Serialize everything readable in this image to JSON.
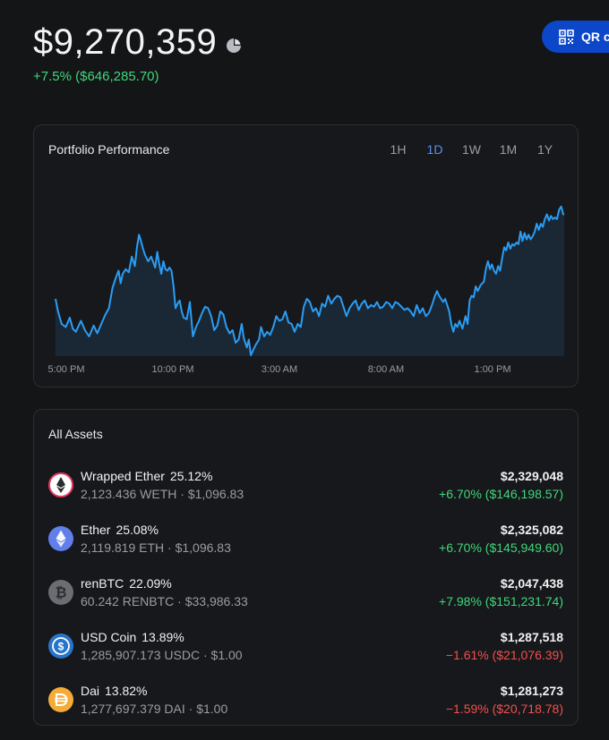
{
  "header": {
    "balance": "$9,270,359",
    "change": "+7.5% ($646,285.70)",
    "qr_button_label": "QR c",
    "pie_icon": "pie-chart-icon",
    "qr_icon": "qr-code-icon"
  },
  "performance": {
    "title": "Portfolio Performance",
    "ranges": [
      "1H",
      "1D",
      "1W",
      "1M",
      "1Y"
    ],
    "active_range": "1D"
  },
  "chart_data": {
    "type": "area",
    "title": "",
    "x_ticks": [
      "5:00 PM",
      "10:00 PM",
      "3:00 AM",
      "8:00 AM",
      "1:00 PM"
    ],
    "y_axis_visible": false,
    "grid": false,
    "line_color": "#2a9df4",
    "fill_color": "#1a2836",
    "series_relative": [
      [
        0,
        0.36
      ],
      [
        0.005,
        0.28
      ],
      [
        0.012,
        0.2
      ],
      [
        0.02,
        0.18
      ],
      [
        0.028,
        0.24
      ],
      [
        0.034,
        0.17
      ],
      [
        0.04,
        0.15
      ],
      [
        0.05,
        0.22
      ],
      [
        0.058,
        0.16
      ],
      [
        0.066,
        0.12
      ],
      [
        0.075,
        0.19
      ],
      [
        0.082,
        0.14
      ],
      [
        0.09,
        0.2
      ],
      [
        0.098,
        0.26
      ],
      [
        0.105,
        0.3
      ],
      [
        0.112,
        0.43
      ],
      [
        0.118,
        0.49
      ],
      [
        0.124,
        0.54
      ],
      [
        0.128,
        0.46
      ],
      [
        0.132,
        0.52
      ],
      [
        0.138,
        0.55
      ],
      [
        0.144,
        0.53
      ],
      [
        0.15,
        0.63
      ],
      [
        0.156,
        0.57
      ],
      [
        0.16,
        0.69
      ],
      [
        0.164,
        0.77
      ],
      [
        0.168,
        0.73
      ],
      [
        0.172,
        0.68
      ],
      [
        0.176,
        0.64
      ],
      [
        0.182,
        0.6
      ],
      [
        0.188,
        0.63
      ],
      [
        0.196,
        0.56
      ],
      [
        0.2,
        0.66
      ],
      [
        0.204,
        0.58
      ],
      [
        0.208,
        0.52
      ],
      [
        0.212,
        0.6
      ],
      [
        0.216,
        0.55
      ],
      [
        0.22,
        0.54
      ],
      [
        0.224,
        0.56
      ],
      [
        0.228,
        0.54
      ],
      [
        0.232,
        0.44
      ],
      [
        0.236,
        0.3
      ],
      [
        0.24,
        0.33
      ],
      [
        0.244,
        0.35
      ],
      [
        0.248,
        0.28
      ],
      [
        0.252,
        0.24
      ],
      [
        0.258,
        0.23
      ],
      [
        0.264,
        0.34
      ],
      [
        0.27,
        0.12
      ],
      [
        0.276,
        0.18
      ],
      [
        0.282,
        0.22
      ],
      [
        0.288,
        0.27
      ],
      [
        0.294,
        0.31
      ],
      [
        0.3,
        0.3
      ],
      [
        0.306,
        0.25
      ],
      [
        0.312,
        0.16
      ],
      [
        0.318,
        0.19
      ],
      [
        0.324,
        0.28
      ],
      [
        0.33,
        0.26
      ],
      [
        0.336,
        0.18
      ],
      [
        0.342,
        0.14
      ],
      [
        0.348,
        0.16
      ],
      [
        0.354,
        0.08
      ],
      [
        0.36,
        0.1
      ],
      [
        0.366,
        0.2
      ],
      [
        0.37,
        0.11
      ],
      [
        0.376,
        0.05
      ],
      [
        0.38,
        0.1
      ],
      [
        0.384,
        0.0
      ],
      [
        0.388,
        0.03
      ],
      [
        0.394,
        0.07
      ],
      [
        0.4,
        0.1
      ],
      [
        0.404,
        0.18
      ],
      [
        0.41,
        0.12
      ],
      [
        0.416,
        0.15
      ],
      [
        0.422,
        0.13
      ],
      [
        0.428,
        0.18
      ],
      [
        0.434,
        0.25
      ],
      [
        0.44,
        0.22
      ],
      [
        0.446,
        0.23
      ],
      [
        0.452,
        0.28
      ],
      [
        0.458,
        0.21
      ],
      [
        0.464,
        0.2
      ],
      [
        0.47,
        0.15
      ],
      [
        0.476,
        0.2
      ],
      [
        0.482,
        0.18
      ],
      [
        0.488,
        0.31
      ],
      [
        0.494,
        0.36
      ],
      [
        0.5,
        0.34
      ],
      [
        0.506,
        0.28
      ],
      [
        0.512,
        0.3
      ],
      [
        0.518,
        0.25
      ],
      [
        0.524,
        0.33
      ],
      [
        0.53,
        0.31
      ],
      [
        0.536,
        0.38
      ],
      [
        0.542,
        0.33
      ],
      [
        0.548,
        0.36
      ],
      [
        0.554,
        0.38
      ],
      [
        0.56,
        0.37
      ],
      [
        0.566,
        0.31
      ],
      [
        0.572,
        0.25
      ],
      [
        0.578,
        0.3
      ],
      [
        0.584,
        0.33
      ],
      [
        0.59,
        0.35
      ],
      [
        0.596,
        0.29
      ],
      [
        0.602,
        0.33
      ],
      [
        0.608,
        0.35
      ],
      [
        0.614,
        0.3
      ],
      [
        0.62,
        0.32
      ],
      [
        0.626,
        0.31
      ],
      [
        0.632,
        0.34
      ],
      [
        0.638,
        0.3
      ],
      [
        0.644,
        0.31
      ],
      [
        0.65,
        0.34
      ],
      [
        0.656,
        0.33
      ],
      [
        0.662,
        0.3
      ],
      [
        0.668,
        0.34
      ],
      [
        0.674,
        0.33
      ],
      [
        0.68,
        0.31
      ],
      [
        0.686,
        0.29
      ],
      [
        0.692,
        0.3
      ],
      [
        0.698,
        0.28
      ],
      [
        0.704,
        0.25
      ],
      [
        0.71,
        0.32
      ],
      [
        0.716,
        0.27
      ],
      [
        0.722,
        0.3
      ],
      [
        0.728,
        0.25
      ],
      [
        0.734,
        0.27
      ],
      [
        0.74,
        0.32
      ],
      [
        0.746,
        0.38
      ],
      [
        0.75,
        0.41
      ],
      [
        0.754,
        0.38
      ],
      [
        0.758,
        0.36
      ],
      [
        0.762,
        0.34
      ],
      [
        0.766,
        0.36
      ],
      [
        0.77,
        0.32
      ],
      [
        0.774,
        0.28
      ],
      [
        0.778,
        0.2
      ],
      [
        0.782,
        0.15
      ],
      [
        0.786,
        0.2
      ],
      [
        0.79,
        0.18
      ],
      [
        0.794,
        0.22
      ],
      [
        0.8,
        0.17
      ],
      [
        0.806,
        0.25
      ],
      [
        0.81,
        0.2
      ],
      [
        0.814,
        0.35
      ],
      [
        0.818,
        0.38
      ],
      [
        0.822,
        0.37
      ],
      [
        0.826,
        0.44
      ],
      [
        0.83,
        0.41
      ],
      [
        0.836,
        0.45
      ],
      [
        0.842,
        0.47
      ],
      [
        0.846,
        0.55
      ],
      [
        0.85,
        0.6
      ],
      [
        0.854,
        0.55
      ],
      [
        0.858,
        0.58
      ],
      [
        0.862,
        0.54
      ],
      [
        0.866,
        0.52
      ],
      [
        0.87,
        0.57
      ],
      [
        0.874,
        0.54
      ],
      [
        0.878,
        0.62
      ],
      [
        0.882,
        0.69
      ],
      [
        0.886,
        0.67
      ],
      [
        0.89,
        0.72
      ],
      [
        0.894,
        0.68
      ],
      [
        0.898,
        0.71
      ],
      [
        0.902,
        0.7
      ],
      [
        0.906,
        0.72
      ],
      [
        0.91,
        0.71
      ],
      [
        0.914,
        0.79
      ],
      [
        0.918,
        0.73
      ],
      [
        0.922,
        0.78
      ],
      [
        0.926,
        0.74
      ],
      [
        0.93,
        0.77
      ],
      [
        0.934,
        0.74
      ],
      [
        0.938,
        0.76
      ],
      [
        0.942,
        0.79
      ],
      [
        0.946,
        0.84
      ],
      [
        0.95,
        0.8
      ],
      [
        0.954,
        0.84
      ],
      [
        0.958,
        0.82
      ],
      [
        0.962,
        0.87
      ],
      [
        0.966,
        0.9
      ],
      [
        0.97,
        0.86
      ],
      [
        0.974,
        0.89
      ],
      [
        0.978,
        0.87
      ],
      [
        0.982,
        0.88
      ],
      [
        0.986,
        0.87
      ],
      [
        0.99,
        0.93
      ],
      [
        0.994,
        0.95
      ],
      [
        0.998,
        0.9
      ],
      [
        1.0,
        0.9
      ]
    ]
  },
  "assets": {
    "title": "All Assets",
    "items": [
      {
        "name": "Wrapped Ether",
        "pct": "25.12%",
        "sub": "2,123.436 WETH · $1,096.83",
        "value": "$2,329,048",
        "change": "+6.70% ($146,198.57)",
        "direction": "pos",
        "icon": "wrapped-ether-icon",
        "icon_color": "#e8375f"
      },
      {
        "name": "Ether",
        "pct": "25.08%",
        "sub": "2,119.819 ETH · $1,096.83",
        "value": "$2,325,082",
        "change": "+6.70% ($145,949.60)",
        "direction": "pos",
        "icon": "ether-icon",
        "icon_color": "#627eea"
      },
      {
        "name": "renBTC",
        "pct": "22.09%",
        "sub": "60.242 RENBTC · $33,986.33",
        "value": "$2,047,438",
        "change": "+7.98% ($151,231.74)",
        "direction": "pos",
        "icon": "renbtc-icon",
        "icon_color": "#6b6d72"
      },
      {
        "name": "USD Coin",
        "pct": "13.89%",
        "sub": "1,285,907.173 USDC · $1.00",
        "value": "$1,287,518",
        "change": "−1.61% ($21,076.39)",
        "direction": "neg",
        "icon": "usd-coin-icon",
        "icon_color": "#2775ca"
      },
      {
        "name": "Dai",
        "pct": "13.82%",
        "sub": "1,277,697.379 DAI · $1.00",
        "value": "$1,281,273",
        "change": "−1.59% ($20,718.78)",
        "direction": "neg",
        "icon": "dai-icon",
        "icon_color": "#f5ac37"
      }
    ]
  }
}
